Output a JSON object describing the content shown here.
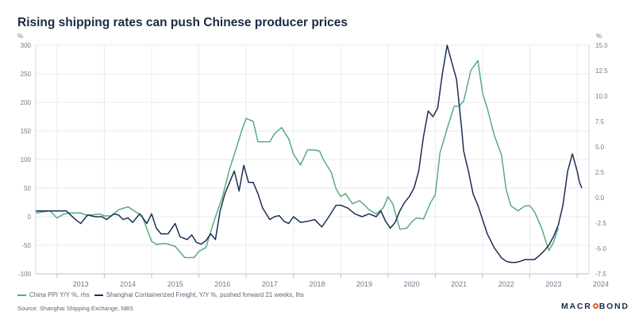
{
  "title": "Rising shipping rates can push Chinese producer prices",
  "left_unit": "%",
  "right_unit": "%",
  "legend": {
    "series1": "China PPI Y/Y %, rhs",
    "series2": "Shanghai Containerized Freight, Y/Y %, pushed forward 21 weeks, lhs"
  },
  "source": "Source: Shanghai Shipping Exchange, NBS",
  "logo": {
    "before": "MACR",
    "after": "BOND"
  },
  "colors": {
    "ppi": "#5aaa85",
    "freight": "#1b2e54",
    "grid": "#e8eaee",
    "text": "#707a88"
  },
  "chart_data": {
    "type": "line",
    "title": "Rising shipping rates can push Chinese producer prices",
    "x_range": [
      2012.55,
      2024.25
    ],
    "x_ticks": [
      {
        "value": 2013.0,
        "label": "2013"
      },
      {
        "value": 2014.0,
        "label": "2014"
      },
      {
        "value": 2015.0,
        "label": "2015"
      },
      {
        "value": 2016.0,
        "label": "2016"
      },
      {
        "value": 2017.0,
        "label": "2017"
      },
      {
        "value": 2018.0,
        "label": "2018"
      },
      {
        "value": 2019.0,
        "label": "2019"
      },
      {
        "value": 2020.0,
        "label": "2020"
      },
      {
        "value": 2021.0,
        "label": "2021"
      },
      {
        "value": 2022.0,
        "label": "2022"
      },
      {
        "value": 2023.0,
        "label": "2023"
      },
      {
        "value": 2024.0,
        "label": "2024"
      }
    ],
    "left_axis": {
      "label": "%",
      "range": [
        -100,
        300
      ],
      "ticks": [
        {
          "value": -100,
          "label": "-100"
        },
        {
          "value": -50,
          "label": "-50"
        },
        {
          "value": 0,
          "label": "0"
        },
        {
          "value": 50,
          "label": "50"
        },
        {
          "value": 100,
          "label": "100"
        },
        {
          "value": 150,
          "label": "150"
        },
        {
          "value": 200,
          "label": "200"
        },
        {
          "value": 250,
          "label": "250"
        },
        {
          "value": 300,
          "label": "300"
        }
      ]
    },
    "right_axis": {
      "label": "%",
      "range": [
        -7.5,
        15.0
      ],
      "ticks": [
        {
          "value": -7.5,
          "label": "-7.5"
        },
        {
          "value": -5.0,
          "label": "-5.0"
        },
        {
          "value": -2.5,
          "label": "-2.5"
        },
        {
          "value": 0.0,
          "label": "0.0"
        },
        {
          "value": 2.5,
          "label": "2.5"
        },
        {
          "value": 5.0,
          "label": "5.0"
        },
        {
          "value": 7.5,
          "label": "7.5"
        },
        {
          "value": 10.0,
          "label": "10.0"
        },
        {
          "value": 12.5,
          "label": "12.5"
        },
        {
          "value": 15.0,
          "label": "15.0"
        }
      ]
    },
    "grid": true,
    "series": [
      {
        "name": "China PPI Y/Y %, rhs",
        "axis": "right",
        "x": [
          2012.55,
          2012.85,
          2013.0,
          2013.15,
          2013.3,
          2013.5,
          2013.6,
          2013.75,
          2013.9,
          2014.0,
          2014.15,
          2014.3,
          2014.5,
          2014.6,
          2014.8,
          2015.0,
          2015.1,
          2015.3,
          2015.5,
          2015.7,
          2015.9,
          2016.0,
          2016.15,
          2016.3,
          2016.5,
          2016.65,
          2016.8,
          2016.9,
          2017.0,
          2017.15,
          2017.25,
          2017.4,
          2017.5,
          2017.6,
          2017.75,
          2017.9,
          2018.0,
          2018.15,
          2018.3,
          2018.4,
          2018.55,
          2018.65,
          2018.8,
          2018.9,
          2019.0,
          2019.1,
          2019.25,
          2019.4,
          2019.5,
          2019.6,
          2019.75,
          2019.9,
          2020.0,
          2020.1,
          2020.25,
          2020.4,
          2020.5,
          2020.6,
          2020.75,
          2020.9,
          2021.0,
          2021.1,
          2021.25,
          2021.4,
          2021.5,
          2021.6,
          2021.75,
          2021.9,
          2022.0,
          2022.1,
          2022.25,
          2022.4,
          2022.5,
          2022.6,
          2022.75,
          2022.9,
          2023.0,
          2023.1,
          2023.25,
          2023.4,
          2023.5,
          2023.6
        ],
        "values": [
          -1.5,
          -1.3,
          -2.0,
          -1.6,
          -1.5,
          -1.5,
          -1.7,
          -1.7,
          -1.6,
          -1.8,
          -1.8,
          -1.2,
          -0.9,
          -1.2,
          -1.8,
          -4.3,
          -4.6,
          -4.5,
          -4.8,
          -5.9,
          -5.9,
          -5.3,
          -4.9,
          -2.6,
          0.1,
          2.8,
          5.0,
          6.5,
          7.8,
          7.5,
          5.5,
          5.5,
          5.5,
          6.3,
          6.9,
          5.8,
          4.3,
          3.2,
          4.7,
          4.7,
          4.6,
          3.6,
          2.5,
          0.9,
          0.1,
          0.4,
          -0.6,
          -0.3,
          -0.7,
          -1.2,
          -1.6,
          -1.0,
          0.1,
          -0.6,
          -3.1,
          -3.0,
          -2.4,
          -2.0,
          -2.1,
          -0.5,
          0.3,
          4.4,
          6.8,
          9.0,
          9.0,
          9.5,
          12.5,
          13.5,
          10.3,
          8.8,
          6.1,
          4.2,
          0.8,
          -0.8,
          -1.3,
          -0.8,
          -0.8,
          -1.4,
          -3.0,
          -5.2,
          -4.4,
          -3.0
        ]
      },
      {
        "name": "Shanghai Containerized Freight, Y/Y %, pushed forward 21 weeks, lhs",
        "axis": "left",
        "x": [
          2012.55,
          2012.8,
          2013.05,
          2013.2,
          2013.35,
          2013.5,
          2013.65,
          2013.8,
          2013.95,
          2014.05,
          2014.2,
          2014.3,
          2014.4,
          2014.5,
          2014.6,
          2014.75,
          2014.9,
          2015.0,
          2015.1,
          2015.2,
          2015.35,
          2015.5,
          2015.6,
          2015.75,
          2015.85,
          2015.95,
          2016.05,
          2016.15,
          2016.25,
          2016.35,
          2016.45,
          2016.55,
          2016.65,
          2016.75,
          2016.85,
          2016.95,
          2017.05,
          2017.15,
          2017.25,
          2017.35,
          2017.5,
          2017.6,
          2017.7,
          2017.8,
          2017.9,
          2018.0,
          2018.15,
          2018.3,
          2018.45,
          2018.6,
          2018.75,
          2018.9,
          2019.0,
          2019.15,
          2019.3,
          2019.45,
          2019.6,
          2019.75,
          2019.85,
          2019.95,
          2020.05,
          2020.15,
          2020.25,
          2020.35,
          2020.45,
          2020.55,
          2020.65,
          2020.75,
          2020.85,
          2020.95,
          2021.05,
          2021.15,
          2021.25,
          2021.35,
          2021.45,
          2021.55,
          2021.6,
          2021.7,
          2021.8,
          2021.9,
          2022.0,
          2022.1,
          2022.25,
          2022.4,
          2022.5,
          2022.6,
          2022.7,
          2022.8,
          2022.9,
          2023.0,
          2023.1,
          2023.2,
          2023.3,
          2023.4,
          2023.5,
          2023.6,
          2023.7,
          2023.8,
          2023.9,
          2024.0,
          2024.05,
          2024.1
        ],
        "values": [
          10,
          10,
          10,
          10,
          -2,
          -12,
          3,
          0,
          0,
          -5,
          5,
          3,
          -5,
          -2,
          -10,
          5,
          -12,
          5,
          -20,
          -30,
          -30,
          -12,
          -35,
          -40,
          -32,
          -45,
          -48,
          -42,
          -30,
          -40,
          10,
          40,
          60,
          80,
          45,
          90,
          60,
          60,
          40,
          15,
          -5,
          0,
          2,
          -8,
          -12,
          0,
          -10,
          -8,
          -5,
          -18,
          0,
          20,
          20,
          15,
          5,
          0,
          5,
          0,
          10,
          -8,
          -20,
          -10,
          10,
          25,
          35,
          50,
          80,
          140,
          185,
          175,
          190,
          250,
          300,
          270,
          240,
          160,
          115,
          80,
          40,
          20,
          -5,
          -30,
          -55,
          -72,
          -78,
          -80,
          -80,
          -78,
          -75,
          -75,
          -75,
          -68,
          -60,
          -50,
          -35,
          -15,
          20,
          80,
          110,
          80,
          60,
          50
        ]
      }
    ]
  }
}
